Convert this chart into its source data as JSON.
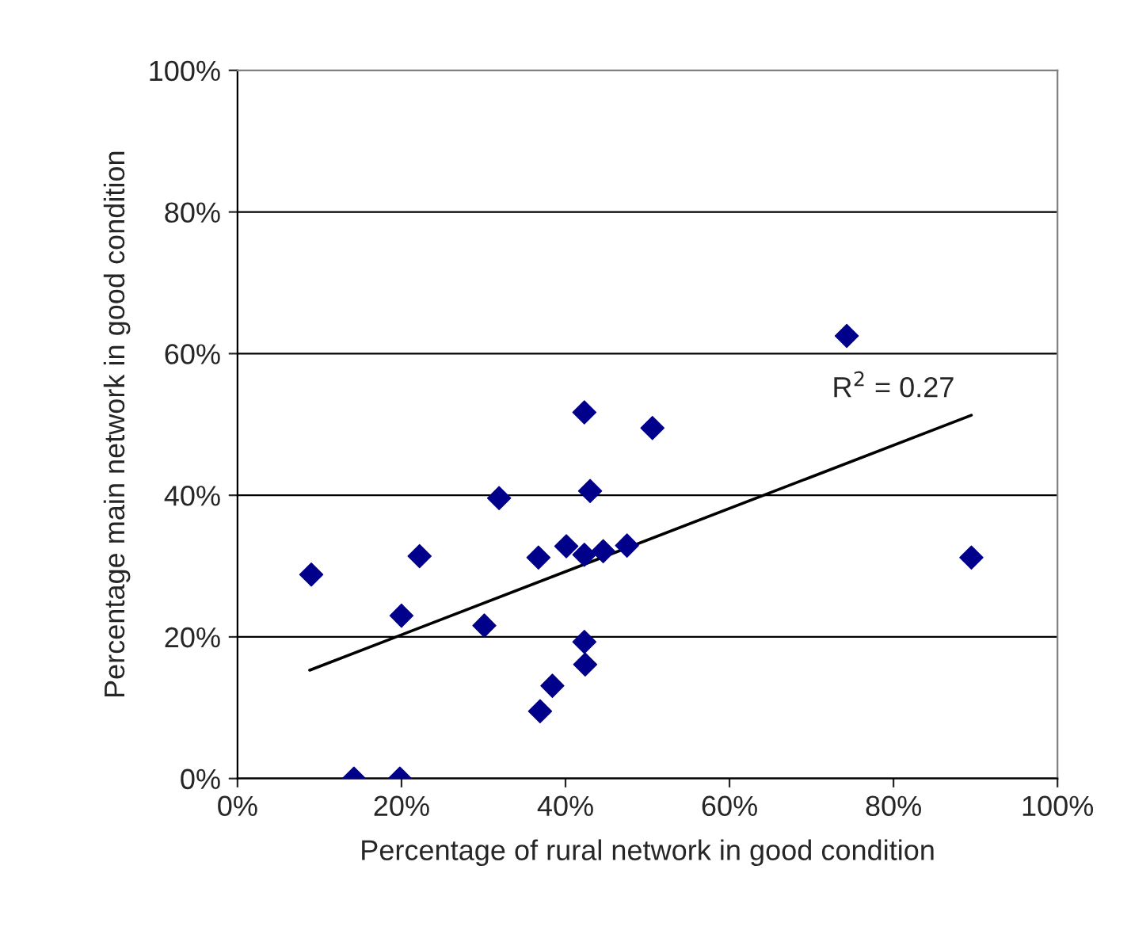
{
  "chart_data": {
    "type": "scatter",
    "xlabel": "Percentage of rural network in good condition",
    "ylabel": "Percentage main network in good condition",
    "xlim": [
      0,
      100
    ],
    "ylim": [
      0,
      100
    ],
    "xticks": [
      {
        "value": 0,
        "label": "0%"
      },
      {
        "value": 20,
        "label": "20%"
      },
      {
        "value": 40,
        "label": "40%"
      },
      {
        "value": 60,
        "label": "60%"
      },
      {
        "value": 80,
        "label": "80%"
      },
      {
        "value": 100,
        "label": "100%"
      }
    ],
    "yticks": [
      {
        "value": 0,
        "label": "0%"
      },
      {
        "value": 20,
        "label": "20%"
      },
      {
        "value": 40,
        "label": "40%"
      },
      {
        "value": 60,
        "label": "60%"
      },
      {
        "value": 80,
        "label": "80%"
      },
      {
        "value": 100,
        "label": "100%"
      }
    ],
    "grid": "y",
    "marker": "diamond",
    "legend": false,
    "series": [
      {
        "color": "#00008b",
        "x": [
          9.0,
          14.2,
          19.8,
          20.0,
          22.2,
          30.1,
          31.9,
          36.7,
          36.9,
          38.4,
          40.1,
          42.3,
          42.3,
          42.3,
          42.4,
          43.0,
          44.6,
          47.5,
          50.6,
          74.3,
          89.5
        ],
        "values": [
          28.8,
          0,
          0,
          23.0,
          31.4,
          21.6,
          39.6,
          31.2,
          9.5,
          13.1,
          32.8,
          51.7,
          31.6,
          19.3,
          16.1,
          40.6,
          32.1,
          32.9,
          49.5,
          62.5,
          31.2
        ]
      },
      {
        "type": "line",
        "color": "#000000",
        "marker": "none",
        "x": [
          8.8,
          89.5
        ],
        "values": [
          15.3,
          51.3
        ]
      }
    ],
    "annotations": [
      "R$^{2}$ = 0.27"
    ]
  }
}
